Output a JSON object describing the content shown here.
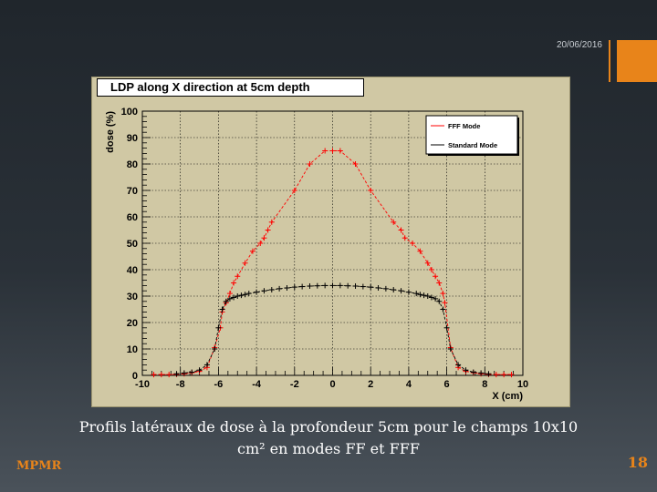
{
  "slide": {
    "date": "20/06/2016",
    "caption": "Profils latéraux de dose à la profondeur 5cm pour le champs 10x10 cm² en modes FF et FFF",
    "footer_left": "MPMR",
    "page_number": "18",
    "accent_color": "#e8841a"
  },
  "chart_data": {
    "type": "line",
    "title": "LDP along X direction at 5cm depth",
    "xlabel": "X (cm)",
    "ylabel": "dose (%)",
    "xlim": [
      -10,
      10
    ],
    "ylim": [
      0,
      100
    ],
    "xticks": [
      -10,
      -8,
      -6,
      -4,
      -2,
      0,
      2,
      4,
      6,
      8,
      10
    ],
    "yticks": [
      0,
      10,
      20,
      30,
      40,
      50,
      60,
      70,
      80,
      90,
      100
    ],
    "grid": true,
    "legend_position": "top-right",
    "series": [
      {
        "name": "FFF Mode",
        "color": "#ff0000",
        "x": [
          -9.4,
          -9,
          -8.6,
          -8.2,
          -7.8,
          -7.4,
          -7,
          -6.6,
          -6.2,
          -5.9,
          -5.8,
          -5.6,
          -5.4,
          -5.2,
          -5,
          -4.6,
          -4.2,
          -3.8,
          -3.6,
          -3.4,
          -3.2,
          -2,
          -1.2,
          -0.4,
          0,
          0.4,
          1.2,
          2,
          3.2,
          3.6,
          3.8,
          4.2,
          4.6,
          5,
          5.2,
          5.4,
          5.6,
          5.8,
          5.9,
          6.2,
          6.6,
          7,
          7.4,
          7.8,
          8.2,
          8.6,
          9,
          9.4
        ],
        "y": [
          0.3,
          0.3,
          0.3,
          0.4,
          0.6,
          1.0,
          1.5,
          3.0,
          10.5,
          18.0,
          24.0,
          27.5,
          31.0,
          35.0,
          37.5,
          42.5,
          47.0,
          50.0,
          52.0,
          55.0,
          58.0,
          70.0,
          80.0,
          85.0,
          85.0,
          85.0,
          80.0,
          70.0,
          58.0,
          55.0,
          52.0,
          50.0,
          47.0,
          42.5,
          40.0,
          37.5,
          35.0,
          31.0,
          27.5,
          10.5,
          3.0,
          1.5,
          1.0,
          0.6,
          0.4,
          0.3,
          0.3,
          0.3
        ]
      },
      {
        "name": "Standard Mode",
        "color": "#000000",
        "x": [
          -8.2,
          -7.8,
          -7.4,
          -7,
          -6.6,
          -6.2,
          -6,
          -5.8,
          -5.6,
          -5.4,
          -5.2,
          -5,
          -4.8,
          -4.6,
          -4.4,
          -4,
          -3.6,
          -3.2,
          -2.8,
          -2.4,
          -2,
          -1.6,
          -1.2,
          -0.8,
          -0.4,
          0,
          0.4,
          0.8,
          1.2,
          1.6,
          2,
          2.4,
          2.8,
          3.2,
          3.6,
          4,
          4.4,
          4.6,
          4.8,
          5,
          5.2,
          5.4,
          5.6,
          5.8,
          6,
          6.2,
          6.6,
          7,
          7.4,
          7.8,
          8.2
        ],
        "y": [
          0.6,
          0.9,
          1.2,
          2.0,
          4.0,
          10.0,
          18.0,
          25.0,
          28.0,
          29.0,
          29.5,
          30.0,
          30.3,
          30.6,
          31.0,
          31.5,
          32.0,
          32.4,
          32.8,
          33.1,
          33.4,
          33.6,
          33.8,
          33.9,
          34.0,
          34.0,
          34.0,
          33.9,
          33.8,
          33.6,
          33.4,
          33.1,
          32.8,
          32.4,
          32.0,
          31.5,
          31.0,
          30.6,
          30.3,
          30.0,
          29.5,
          29.0,
          28.0,
          25.0,
          18.0,
          10.0,
          4.0,
          2.0,
          1.2,
          0.9,
          0.6
        ]
      }
    ]
  }
}
